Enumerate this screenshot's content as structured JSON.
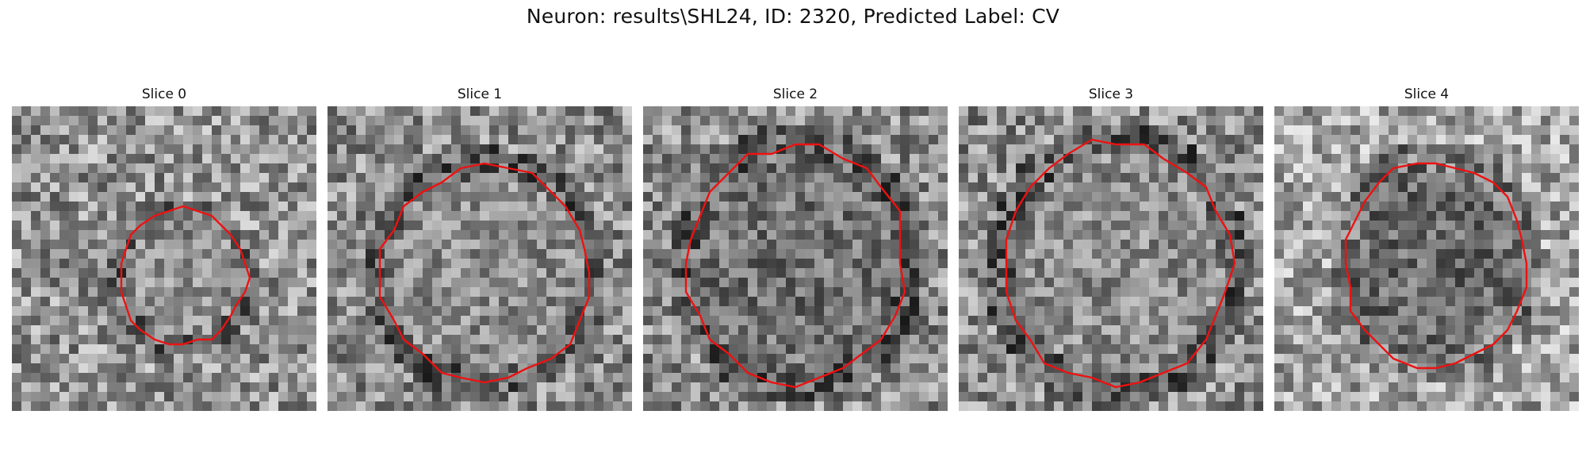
{
  "figure": {
    "title": "Neuron: results\\SHL24, ID: 2320, Predicted Label: CV"
  },
  "colors": {
    "contour": "#ee1111",
    "background": "#ffffff"
  },
  "slices": [
    {
      "title": "Slice 0",
      "contour_center": [
        0.56,
        0.56
      ],
      "contour_radius": [
        0.21,
        0.22
      ],
      "cell_tone": 0.55,
      "image_mean": 0.58
    },
    {
      "title": "Slice 1",
      "contour_center": [
        0.52,
        0.55
      ],
      "contour_radius": [
        0.34,
        0.35
      ],
      "cell_tone": 0.55,
      "image_mean": 0.55
    },
    {
      "title": "Slice 2",
      "contour_center": [
        0.5,
        0.52
      ],
      "contour_radius": [
        0.36,
        0.39
      ],
      "cell_tone": 0.45,
      "image_mean": 0.55
    },
    {
      "title": "Slice 3",
      "contour_center": [
        0.52,
        0.52
      ],
      "contour_radius": [
        0.37,
        0.4
      ],
      "cell_tone": 0.55,
      "image_mean": 0.55
    },
    {
      "title": "Slice 4",
      "contour_center": [
        0.53,
        0.52
      ],
      "contour_radius": [
        0.3,
        0.34
      ],
      "cell_tone": 0.42,
      "image_mean": 0.65
    }
  ]
}
